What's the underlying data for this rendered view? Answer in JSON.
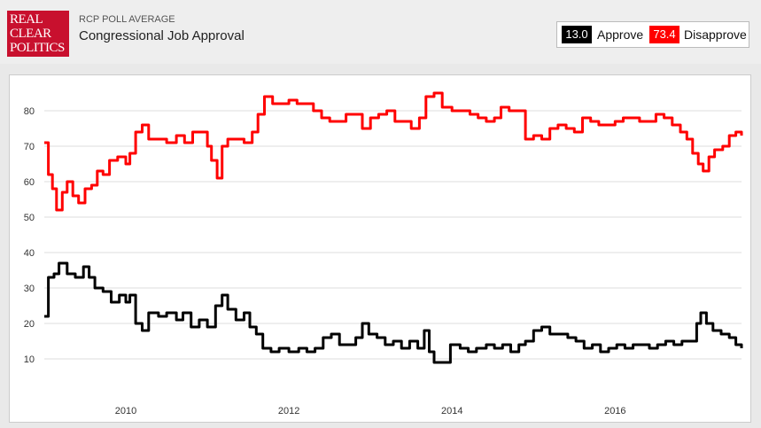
{
  "header": {
    "logo_lines": [
      "REAL",
      "CLEAR",
      "POLITICS"
    ],
    "subtitle": "RCP POLL AVERAGE",
    "title": "Congressional Job Approval"
  },
  "legend": {
    "approve_value": "13.0",
    "approve_label": "Approve",
    "disapprove_value": "73.4",
    "disapprove_label": "Disapprove"
  },
  "colors": {
    "approve": "#000000",
    "disapprove": "#ff0000",
    "grid": "#dddddd"
  },
  "chart_data": {
    "type": "line",
    "title": "Congressional Job Approval",
    "xlabel": "",
    "ylabel": "",
    "xlim": [
      2009.0,
      2017.55
    ],
    "ylim": [
      0,
      88
    ],
    "yticks": [
      10,
      20,
      30,
      40,
      50,
      60,
      70,
      80
    ],
    "xticks": [
      2010,
      2012,
      2014,
      2016
    ],
    "grid": true,
    "legend_position": "top-right",
    "series": [
      {
        "name": "Approve",
        "color": "#000000",
        "points": [
          [
            2009.0,
            22
          ],
          [
            2009.05,
            33
          ],
          [
            2009.12,
            34
          ],
          [
            2009.18,
            37
          ],
          [
            2009.28,
            34
          ],
          [
            2009.38,
            33
          ],
          [
            2009.48,
            36
          ],
          [
            2009.55,
            33
          ],
          [
            2009.62,
            30
          ],
          [
            2009.72,
            29
          ],
          [
            2009.82,
            26
          ],
          [
            2009.92,
            28
          ],
          [
            2010.0,
            26
          ],
          [
            2010.05,
            28
          ],
          [
            2010.12,
            20
          ],
          [
            2010.2,
            18
          ],
          [
            2010.28,
            23
          ],
          [
            2010.4,
            22
          ],
          [
            2010.5,
            23
          ],
          [
            2010.62,
            21
          ],
          [
            2010.7,
            23
          ],
          [
            2010.8,
            19
          ],
          [
            2010.9,
            21
          ],
          [
            2011.0,
            19
          ],
          [
            2011.1,
            25
          ],
          [
            2011.18,
            28
          ],
          [
            2011.25,
            24
          ],
          [
            2011.35,
            21
          ],
          [
            2011.45,
            23
          ],
          [
            2011.52,
            19
          ],
          [
            2011.6,
            17
          ],
          [
            2011.68,
            13
          ],
          [
            2011.78,
            12
          ],
          [
            2011.88,
            13
          ],
          [
            2012.0,
            12
          ],
          [
            2012.12,
            13
          ],
          [
            2012.22,
            12
          ],
          [
            2012.32,
            13
          ],
          [
            2012.42,
            16
          ],
          [
            2012.52,
            17
          ],
          [
            2012.62,
            14
          ],
          [
            2012.72,
            14
          ],
          [
            2012.82,
            16
          ],
          [
            2012.9,
            20
          ],
          [
            2012.98,
            17
          ],
          [
            2013.08,
            16
          ],
          [
            2013.18,
            14
          ],
          [
            2013.28,
            15
          ],
          [
            2013.38,
            13
          ],
          [
            2013.48,
            15
          ],
          [
            2013.58,
            13
          ],
          [
            2013.66,
            18
          ],
          [
            2013.72,
            12
          ],
          [
            2013.78,
            9
          ],
          [
            2013.88,
            9
          ],
          [
            2013.98,
            14
          ],
          [
            2014.1,
            13
          ],
          [
            2014.2,
            12
          ],
          [
            2014.3,
            13
          ],
          [
            2014.42,
            14
          ],
          [
            2014.52,
            13
          ],
          [
            2014.62,
            14
          ],
          [
            2014.72,
            12
          ],
          [
            2014.82,
            14
          ],
          [
            2014.9,
            15
          ],
          [
            2015.0,
            18
          ],
          [
            2015.1,
            19
          ],
          [
            2015.2,
            17
          ],
          [
            2015.3,
            17
          ],
          [
            2015.42,
            16
          ],
          [
            2015.52,
            15
          ],
          [
            2015.62,
            13
          ],
          [
            2015.72,
            14
          ],
          [
            2015.82,
            12
          ],
          [
            2015.92,
            13
          ],
          [
            2016.02,
            14
          ],
          [
            2016.12,
            13
          ],
          [
            2016.22,
            14
          ],
          [
            2016.32,
            14
          ],
          [
            2016.42,
            13
          ],
          [
            2016.52,
            14
          ],
          [
            2016.62,
            15
          ],
          [
            2016.72,
            14
          ],
          [
            2016.82,
            15
          ],
          [
            2016.92,
            15
          ],
          [
            2017.0,
            20
          ],
          [
            2017.05,
            23
          ],
          [
            2017.12,
            20
          ],
          [
            2017.2,
            18
          ],
          [
            2017.3,
            17
          ],
          [
            2017.4,
            16
          ],
          [
            2017.48,
            14
          ],
          [
            2017.55,
            13
          ]
        ]
      },
      {
        "name": "Disapprove",
        "color": "#ff0000",
        "points": [
          [
            2009.0,
            71
          ],
          [
            2009.05,
            62
          ],
          [
            2009.1,
            58
          ],
          [
            2009.15,
            52
          ],
          [
            2009.22,
            57
          ],
          [
            2009.28,
            60
          ],
          [
            2009.35,
            56
          ],
          [
            2009.42,
            54
          ],
          [
            2009.5,
            58
          ],
          [
            2009.58,
            59
          ],
          [
            2009.65,
            63
          ],
          [
            2009.72,
            62
          ],
          [
            2009.8,
            66
          ],
          [
            2009.9,
            67
          ],
          [
            2010.0,
            65
          ],
          [
            2010.05,
            68
          ],
          [
            2010.12,
            74
          ],
          [
            2010.2,
            76
          ],
          [
            2010.28,
            72
          ],
          [
            2010.4,
            72
          ],
          [
            2010.5,
            71
          ],
          [
            2010.62,
            73
          ],
          [
            2010.72,
            71
          ],
          [
            2010.82,
            74
          ],
          [
            2010.92,
            74
          ],
          [
            2011.0,
            70
          ],
          [
            2011.05,
            66
          ],
          [
            2011.12,
            61
          ],
          [
            2011.18,
            70
          ],
          [
            2011.25,
            72
          ],
          [
            2011.35,
            72
          ],
          [
            2011.45,
            71
          ],
          [
            2011.55,
            74
          ],
          [
            2011.62,
            79
          ],
          [
            2011.7,
            84
          ],
          [
            2011.8,
            82
          ],
          [
            2011.9,
            82
          ],
          [
            2012.0,
            83
          ],
          [
            2012.1,
            82
          ],
          [
            2012.2,
            82
          ],
          [
            2012.3,
            80
          ],
          [
            2012.4,
            78
          ],
          [
            2012.5,
            77
          ],
          [
            2012.6,
            77
          ],
          [
            2012.7,
            79
          ],
          [
            2012.8,
            79
          ],
          [
            2012.9,
            75
          ],
          [
            2013.0,
            78
          ],
          [
            2013.1,
            79
          ],
          [
            2013.2,
            80
          ],
          [
            2013.3,
            77
          ],
          [
            2013.4,
            77
          ],
          [
            2013.5,
            75
          ],
          [
            2013.6,
            78
          ],
          [
            2013.68,
            84
          ],
          [
            2013.78,
            85
          ],
          [
            2013.88,
            81
          ],
          [
            2014.0,
            80
          ],
          [
            2014.12,
            80
          ],
          [
            2014.22,
            79
          ],
          [
            2014.32,
            78
          ],
          [
            2014.42,
            77
          ],
          [
            2014.52,
            78
          ],
          [
            2014.6,
            81
          ],
          [
            2014.7,
            80
          ],
          [
            2014.8,
            80
          ],
          [
            2014.9,
            72
          ],
          [
            2015.0,
            73
          ],
          [
            2015.1,
            72
          ],
          [
            2015.2,
            75
          ],
          [
            2015.3,
            76
          ],
          [
            2015.4,
            75
          ],
          [
            2015.5,
            74
          ],
          [
            2015.6,
            78
          ],
          [
            2015.7,
            77
          ],
          [
            2015.8,
            76
          ],
          [
            2015.9,
            76
          ],
          [
            2016.0,
            77
          ],
          [
            2016.1,
            78
          ],
          [
            2016.2,
            78
          ],
          [
            2016.3,
            77
          ],
          [
            2016.4,
            77
          ],
          [
            2016.5,
            79
          ],
          [
            2016.6,
            78
          ],
          [
            2016.7,
            76
          ],
          [
            2016.8,
            74
          ],
          [
            2016.88,
            72
          ],
          [
            2016.95,
            68
          ],
          [
            2017.02,
            65
          ],
          [
            2017.08,
            63
          ],
          [
            2017.15,
            67
          ],
          [
            2017.22,
            69
          ],
          [
            2017.32,
            70
          ],
          [
            2017.4,
            73
          ],
          [
            2017.48,
            74
          ],
          [
            2017.55,
            73
          ]
        ]
      }
    ]
  }
}
